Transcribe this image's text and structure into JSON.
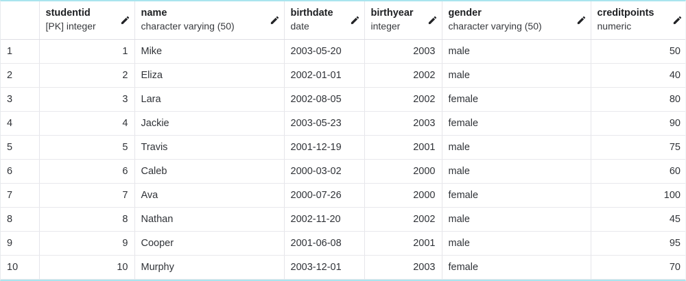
{
  "table": {
    "kind": "pgadmin-data-output-grid",
    "accent_border_color": "#a9e4ee",
    "grid_line_color": "#e5e5ea",
    "header": {
      "row_number_header": "",
      "columns": [
        {
          "name": "studentid",
          "type": "[PK] integer",
          "align": "right"
        },
        {
          "name": "name",
          "type": "character varying (50)",
          "align": "left"
        },
        {
          "name": "birthdate",
          "type": "date",
          "align": "left"
        },
        {
          "name": "birthyear",
          "type": "integer",
          "align": "right"
        },
        {
          "name": "gender",
          "type": "character varying (50)",
          "align": "left"
        },
        {
          "name": "creditpoints",
          "type": "numeric",
          "align": "right"
        }
      ]
    },
    "rows": [
      {
        "row_number": "1",
        "cells": [
          "1",
          "Mike",
          "2003-05-20",
          "2003",
          "male",
          "50"
        ]
      },
      {
        "row_number": "2",
        "cells": [
          "2",
          "Eliza",
          "2002-01-01",
          "2002",
          "male",
          "40"
        ]
      },
      {
        "row_number": "3",
        "cells": [
          "3",
          "Lara",
          "2002-08-05",
          "2002",
          "female",
          "80"
        ]
      },
      {
        "row_number": "4",
        "cells": [
          "4",
          "Jackie",
          "2003-05-23",
          "2003",
          "female",
          "90"
        ]
      },
      {
        "row_number": "5",
        "cells": [
          "5",
          "Travis",
          "2001-12-19",
          "2001",
          "male",
          "75"
        ]
      },
      {
        "row_number": "6",
        "cells": [
          "6",
          "Caleb",
          "2000-03-02",
          "2000",
          "male",
          "60"
        ]
      },
      {
        "row_number": "7",
        "cells": [
          "7",
          "Ava",
          "2000-07-26",
          "2000",
          "female",
          "100"
        ]
      },
      {
        "row_number": "8",
        "cells": [
          "8",
          "Nathan",
          "2002-11-20",
          "2002",
          "male",
          "45"
        ]
      },
      {
        "row_number": "9",
        "cells": [
          "9",
          "Cooper",
          "2001-06-08",
          "2001",
          "male",
          "95"
        ]
      },
      {
        "row_number": "10",
        "cells": [
          "10",
          "Murphy",
          "2003-12-01",
          "2003",
          "female",
          "70"
        ]
      }
    ]
  }
}
